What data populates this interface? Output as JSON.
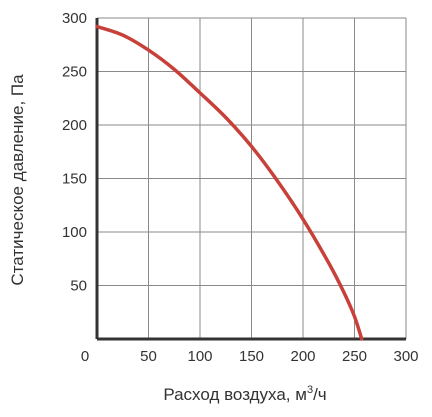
{
  "chart_data": {
    "type": "line",
    "xlabel": "Расход воздуха, м",
    "xlabel_superscript": "3",
    "xlabel_suffix": "/ч",
    "ylabel": "Статическое давление, Па",
    "xlim": [
      0,
      300
    ],
    "ylim": [
      0,
      300
    ],
    "x_ticks": [
      0,
      50,
      100,
      150,
      200,
      250,
      300
    ],
    "y_ticks": [
      50,
      100,
      150,
      200,
      250,
      300
    ],
    "grid": true,
    "series": [
      {
        "color": "#c8403a",
        "points": [
          {
            "x": 0,
            "y": 292
          },
          {
            "x": 25,
            "y": 284
          },
          {
            "x": 50,
            "y": 270
          },
          {
            "x": 75,
            "y": 252
          },
          {
            "x": 100,
            "y": 230
          },
          {
            "x": 125,
            "y": 207
          },
          {
            "x": 150,
            "y": 180
          },
          {
            "x": 175,
            "y": 148
          },
          {
            "x": 200,
            "y": 112
          },
          {
            "x": 225,
            "y": 71
          },
          {
            "x": 240,
            "y": 43
          },
          {
            "x": 250,
            "y": 21
          },
          {
            "x": 257,
            "y": 0
          }
        ]
      }
    ],
    "colors": {
      "grid": "#8a8a8a",
      "axis": "#333333",
      "curve": "#c8403a",
      "text": "#333333"
    }
  }
}
